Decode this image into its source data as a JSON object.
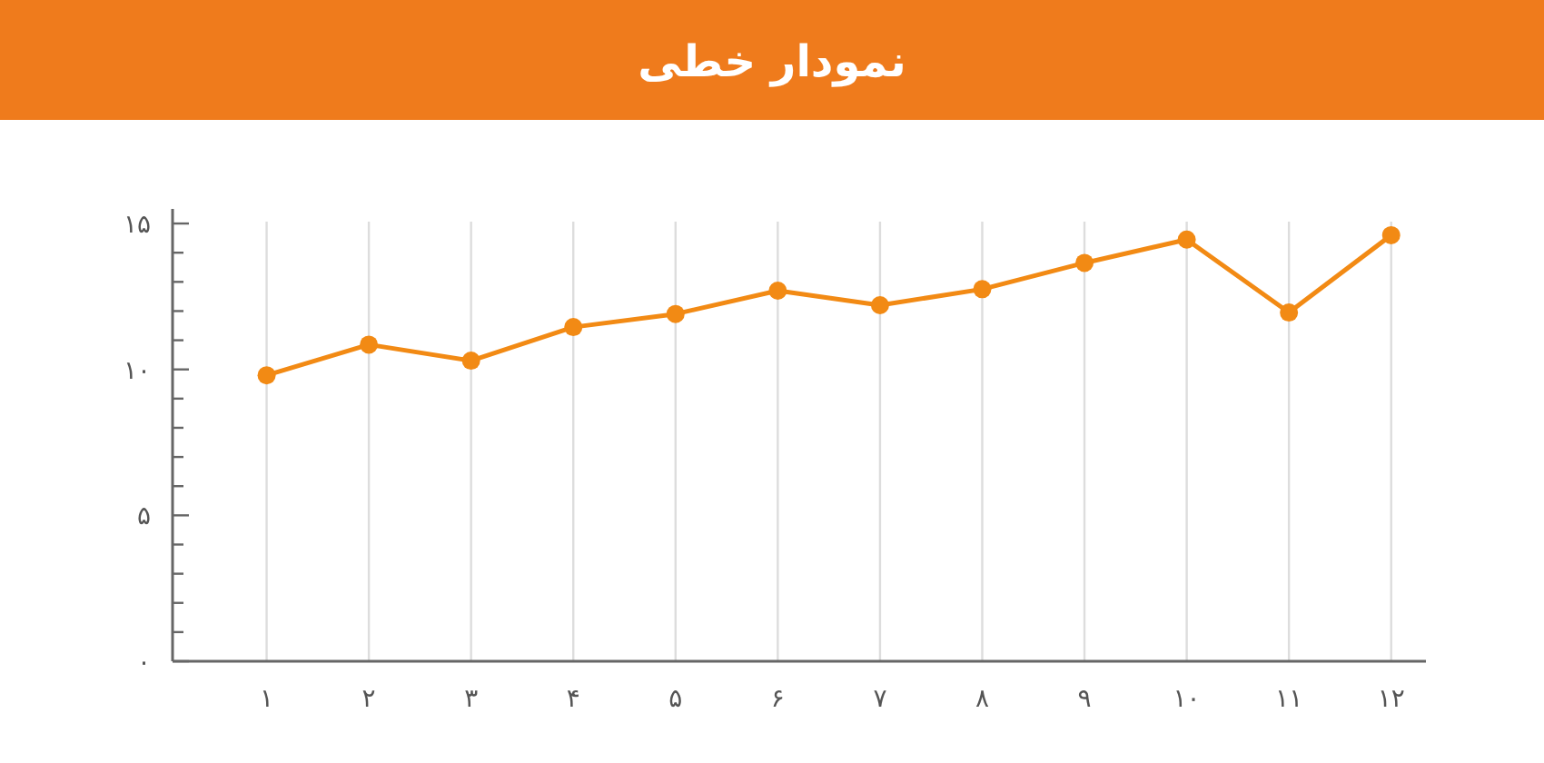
{
  "chart_data": {
    "type": "line",
    "title": "نمودار خطی",
    "x": [
      1,
      2,
      3,
      4,
      5,
      6,
      7,
      8,
      9,
      10,
      11,
      12
    ],
    "values": [
      9.8,
      10.85,
      10.3,
      11.45,
      11.9,
      12.7,
      12.2,
      12.75,
      13.65,
      14.45,
      11.95,
      14.6
    ],
    "color": "#f28a14",
    "xlim": [
      0.08,
      12.34
    ],
    "xticks": [
      {
        "value": 1,
        "label": "۱"
      },
      {
        "value": 2,
        "label": "۲"
      },
      {
        "value": 3,
        "label": "۳"
      },
      {
        "value": 4,
        "label": "۴"
      },
      {
        "value": 5,
        "label": "۵"
      },
      {
        "value": 6,
        "label": "۶"
      },
      {
        "value": 7,
        "label": "۷"
      },
      {
        "value": 8,
        "label": "۸"
      },
      {
        "value": 9,
        "label": "۹"
      },
      {
        "value": 10,
        "label": "۱۰"
      },
      {
        "value": 11,
        "label": "۱۱"
      },
      {
        "value": 12,
        "label": "۱۲"
      }
    ],
    "ylim": [
      0,
      15.5
    ],
    "yticks": [
      {
        "value": 0,
        "label": "۰"
      },
      {
        "value": 1,
        "label": null
      },
      {
        "value": 2,
        "label": null
      },
      {
        "value": 3,
        "label": null
      },
      {
        "value": 4,
        "label": null
      },
      {
        "value": 5,
        "label": "۵"
      },
      {
        "value": 6,
        "label": null
      },
      {
        "value": 7,
        "label": null
      },
      {
        "value": 8,
        "label": null
      },
      {
        "value": 9,
        "label": null
      },
      {
        "value": 10,
        "label": "۱۰"
      },
      {
        "value": 11,
        "label": null
      },
      {
        "value": 12,
        "label": null
      },
      {
        "value": 13,
        "label": null
      },
      {
        "value": 14,
        "label": null
      },
      {
        "value": 15,
        "label": "۱۵"
      }
    ],
    "grid": "x",
    "marker": "circle",
    "line_style": "solid"
  }
}
